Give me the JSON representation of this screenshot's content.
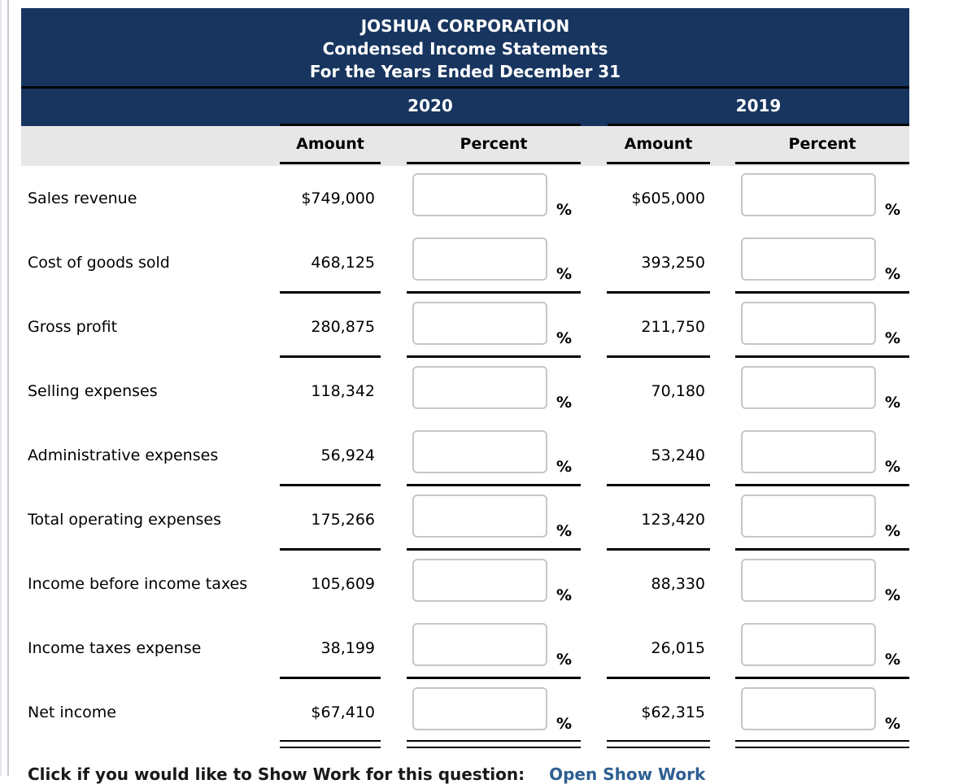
{
  "header": {
    "title_lines": [
      "JOSHUA CORPORATION",
      "Condensed Income Statements",
      "For the Years Ended December 31"
    ],
    "year_left": "2020",
    "year_right": "2019",
    "col_amount": "Amount",
    "col_percent": "Percent"
  },
  "percent_sign": "%",
  "rows": [
    {
      "label": "Sales revenue",
      "amount_2020": "$749,000",
      "percent_2020": "",
      "amount_2019": "$605,000",
      "percent_2019": ""
    },
    {
      "label": "Cost of goods sold",
      "amount_2020": "468,125",
      "percent_2020": "",
      "amount_2019": "393,250",
      "percent_2019": ""
    },
    {
      "label": "Gross profit",
      "amount_2020": "280,875",
      "percent_2020": "",
      "amount_2019": "211,750",
      "percent_2019": ""
    },
    {
      "label": "Selling expenses",
      "amount_2020": "118,342",
      "percent_2020": "",
      "amount_2019": "70,180",
      "percent_2019": ""
    },
    {
      "label": "Administrative expenses",
      "amount_2020": "56,924",
      "percent_2020": "",
      "amount_2019": "53,240",
      "percent_2019": ""
    },
    {
      "label": "Total operating expenses",
      "amount_2020": "175,266",
      "percent_2020": "",
      "amount_2019": "123,420",
      "percent_2019": ""
    },
    {
      "label": "Income before income taxes",
      "amount_2020": "105,609",
      "percent_2020": "",
      "amount_2019": "88,330",
      "percent_2019": ""
    },
    {
      "label": "Income taxes expense",
      "amount_2020": "38,199",
      "percent_2020": "",
      "amount_2019": "26,015",
      "percent_2019": ""
    },
    {
      "label": "Net income",
      "amount_2020": "$67,410",
      "percent_2020": "",
      "amount_2019": "$62,315",
      "percent_2019": ""
    }
  ],
  "footer": {
    "prompt": "Click if you would like to Show Work for this question:",
    "link_label": "Open Show Work"
  },
  "colors": {
    "header_navy": "#17355f",
    "column_header_gray": "#e7e7e7",
    "rule_black": "#050505",
    "input_border": "#c7c7c7",
    "link_blue": "#2e5f92"
  }
}
